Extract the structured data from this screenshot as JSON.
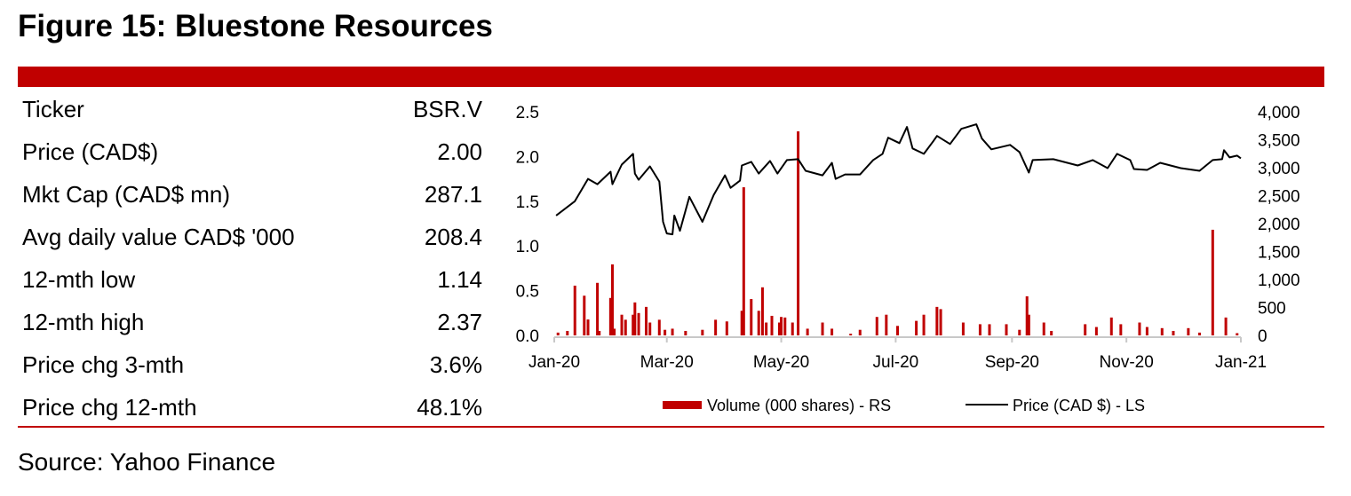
{
  "title": "Figure 15: Bluestone Resources",
  "stats": [
    {
      "label": "Ticker",
      "value": "BSR.V"
    },
    {
      "label": "Price (CAD$)",
      "value": "2.00"
    },
    {
      "label": "Mkt Cap (CAD$ mn)",
      "value": "287.1"
    },
    {
      "label": "Avg daily value CAD$ '000",
      "value": "208.4"
    },
    {
      "label": "12-mth low",
      "value": "1.14"
    },
    {
      "label": "12-mth high",
      "value": "2.37"
    },
    {
      "label": "Price chg 3-mth",
      "value": "3.6%"
    },
    {
      "label": "Price chg 12-mth",
      "value": "48.1%"
    }
  ],
  "source": "Source: Yahoo Finance",
  "colors": {
    "accent": "#c00000",
    "price_line": "#000000",
    "volume_bar": "#c00000",
    "axis": "#c8c8c8"
  },
  "chart_data": {
    "type": "line+bar",
    "x_range": [
      "2020-01-01",
      "2021-01-01"
    ],
    "x_ticks": [
      {
        "date": "2020-01-01",
        "label": "Jan-20"
      },
      {
        "date": "2020-03-01",
        "label": "Mar-20"
      },
      {
        "date": "2020-05-01",
        "label": "May-20"
      },
      {
        "date": "2020-07-01",
        "label": "Jul-20"
      },
      {
        "date": "2020-09-01",
        "label": "Sep-20"
      },
      {
        "date": "2020-11-01",
        "label": "Nov-20"
      },
      {
        "date": "2021-01-01",
        "label": "Jan-21"
      }
    ],
    "y_left": {
      "range": [
        0,
        2.5
      ],
      "ticks": [
        "0.0",
        "0.5",
        "1.0",
        "1.5",
        "2.0",
        "2.5"
      ]
    },
    "y_right": {
      "range": [
        0,
        4000
      ],
      "ticks": [
        "0",
        "500",
        "1,000",
        "1,500",
        "2,000",
        "2,500",
        "3,000",
        "3,500",
        "4,000"
      ]
    },
    "legend_position": "bottom",
    "grid": false,
    "series": [
      {
        "name": "Volume (000 shares) - RS",
        "type": "bar",
        "axis": "right",
        "points": [
          [
            "2020-01-03",
            50
          ],
          [
            "2020-01-08",
            80
          ],
          [
            "2020-01-12",
            890
          ],
          [
            "2020-01-17",
            710
          ],
          [
            "2020-01-19",
            285
          ],
          [
            "2020-01-24",
            940
          ],
          [
            "2020-01-25",
            80
          ],
          [
            "2020-01-31",
            670
          ],
          [
            "2020-02-01",
            1270
          ],
          [
            "2020-02-02",
            120
          ],
          [
            "2020-02-06",
            370
          ],
          [
            "2020-02-08",
            280
          ],
          [
            "2020-02-12",
            370
          ],
          [
            "2020-02-13",
            590
          ],
          [
            "2020-02-15",
            400
          ],
          [
            "2020-02-19",
            510
          ],
          [
            "2020-02-21",
            230
          ],
          [
            "2020-02-26",
            280
          ],
          [
            "2020-02-29",
            100
          ],
          [
            "2020-03-04",
            120
          ],
          [
            "2020-03-11",
            80
          ],
          [
            "2020-03-20",
            100
          ],
          [
            "2020-03-27",
            280
          ],
          [
            "2020-04-02",
            250
          ],
          [
            "2020-04-10",
            440
          ],
          [
            "2020-04-11",
            2650
          ],
          [
            "2020-04-15",
            650
          ],
          [
            "2020-04-19",
            440
          ],
          [
            "2020-04-21",
            860
          ],
          [
            "2020-04-23",
            230
          ],
          [
            "2020-04-26",
            350
          ],
          [
            "2020-04-30",
            230
          ],
          [
            "2020-05-01",
            330
          ],
          [
            "2020-05-03",
            320
          ],
          [
            "2020-05-07",
            230
          ],
          [
            "2020-05-10",
            3650
          ],
          [
            "2020-05-15",
            120
          ],
          [
            "2020-05-23",
            230
          ],
          [
            "2020-05-28",
            120
          ],
          [
            "2020-06-07",
            30
          ],
          [
            "2020-06-12",
            100
          ],
          [
            "2020-06-21",
            330
          ],
          [
            "2020-06-26",
            370
          ],
          [
            "2020-07-02",
            170
          ],
          [
            "2020-07-12",
            260
          ],
          [
            "2020-07-16",
            370
          ],
          [
            "2020-07-23",
            510
          ],
          [
            "2020-07-25",
            470
          ],
          [
            "2020-08-06",
            230
          ],
          [
            "2020-08-15",
            200
          ],
          [
            "2020-08-20",
            200
          ],
          [
            "2020-08-29",
            200
          ],
          [
            "2020-09-05",
            100
          ],
          [
            "2020-09-09",
            700
          ],
          [
            "2020-09-10",
            370
          ],
          [
            "2020-09-18",
            230
          ],
          [
            "2020-09-22",
            80
          ],
          [
            "2020-10-10",
            200
          ],
          [
            "2020-10-16",
            150
          ],
          [
            "2020-10-24",
            320
          ],
          [
            "2020-10-29",
            200
          ],
          [
            "2020-11-08",
            230
          ],
          [
            "2020-11-12",
            150
          ],
          [
            "2020-11-20",
            130
          ],
          [
            "2020-11-26",
            80
          ],
          [
            "2020-12-04",
            130
          ],
          [
            "2020-12-10",
            50
          ],
          [
            "2020-12-17",
            1890
          ],
          [
            "2020-12-24",
            320
          ],
          [
            "2020-12-30",
            40
          ]
        ]
      },
      {
        "name": "Price (CAD $) - LS",
        "type": "line",
        "axis": "left",
        "points": [
          [
            "2020-01-02",
            1.34
          ],
          [
            "2020-01-12",
            1.5
          ],
          [
            "2020-01-19",
            1.75
          ],
          [
            "2020-01-24",
            1.69
          ],
          [
            "2020-01-31",
            1.83
          ],
          [
            "2020-02-01",
            1.69
          ],
          [
            "2020-02-06",
            1.91
          ],
          [
            "2020-02-12",
            2.03
          ],
          [
            "2020-02-13",
            1.81
          ],
          [
            "2020-02-15",
            1.74
          ],
          [
            "2020-02-21",
            1.89
          ],
          [
            "2020-02-26",
            1.72
          ],
          [
            "2020-02-28",
            1.27
          ],
          [
            "2020-03-01",
            1.14
          ],
          [
            "2020-03-04",
            1.13
          ],
          [
            "2020-03-05",
            1.34
          ],
          [
            "2020-03-08",
            1.17
          ],
          [
            "2020-03-13",
            1.55
          ],
          [
            "2020-03-20",
            1.27
          ],
          [
            "2020-03-26",
            1.57
          ],
          [
            "2020-04-01",
            1.79
          ],
          [
            "2020-04-04",
            1.65
          ],
          [
            "2020-04-09",
            1.73
          ],
          [
            "2020-04-10",
            1.9
          ],
          [
            "2020-04-15",
            1.94
          ],
          [
            "2020-04-19",
            1.81
          ],
          [
            "2020-04-25",
            1.95
          ],
          [
            "2020-04-29",
            1.81
          ],
          [
            "2020-05-04",
            1.96
          ],
          [
            "2020-05-10",
            1.97
          ],
          [
            "2020-05-14",
            1.84
          ],
          [
            "2020-05-23",
            1.79
          ],
          [
            "2020-05-28",
            1.93
          ],
          [
            "2020-05-30",
            1.75
          ],
          [
            "2020-06-04",
            1.8
          ],
          [
            "2020-06-12",
            1.8
          ],
          [
            "2020-06-19",
            1.96
          ],
          [
            "2020-06-24",
            2.03
          ],
          [
            "2020-06-27",
            2.21
          ],
          [
            "2020-07-03",
            2.15
          ],
          [
            "2020-07-07",
            2.33
          ],
          [
            "2020-07-10",
            2.09
          ],
          [
            "2020-07-16",
            2.03
          ],
          [
            "2020-07-21",
            2.17
          ],
          [
            "2020-07-23",
            2.23
          ],
          [
            "2020-07-30",
            2.14
          ],
          [
            "2020-08-05",
            2.31
          ],
          [
            "2020-08-13",
            2.36
          ],
          [
            "2020-08-16",
            2.2
          ],
          [
            "2020-08-21",
            2.08
          ],
          [
            "2020-08-31",
            2.13
          ],
          [
            "2020-09-05",
            2.05
          ],
          [
            "2020-09-10",
            1.82
          ],
          [
            "2020-09-12",
            1.96
          ],
          [
            "2020-09-23",
            1.97
          ],
          [
            "2020-10-06",
            1.9
          ],
          [
            "2020-10-14",
            1.96
          ],
          [
            "2020-10-22",
            1.87
          ],
          [
            "2020-10-27",
            2.03
          ],
          [
            "2020-11-03",
            1.96
          ],
          [
            "2020-11-05",
            1.86
          ],
          [
            "2020-11-12",
            1.85
          ],
          [
            "2020-11-19",
            1.93
          ],
          [
            "2020-11-30",
            1.87
          ],
          [
            "2020-12-10",
            1.84
          ],
          [
            "2020-12-17",
            1.96
          ],
          [
            "2020-12-22",
            1.97
          ],
          [
            "2020-12-23",
            2.07
          ],
          [
            "2020-12-26",
            1.99
          ],
          [
            "2020-12-30",
            2.01
          ],
          [
            "2021-01-01",
            1.98
          ]
        ]
      }
    ]
  }
}
